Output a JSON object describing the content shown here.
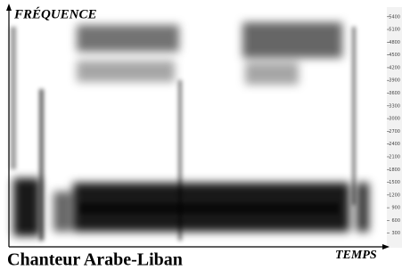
{
  "chart_data": {
    "type": "spectrogram",
    "title": "Chanteur Arabe-Liban",
    "y_label": "FRÉQUENCE",
    "x_label": "TEMPS",
    "ylim": [
      0,
      5500
    ],
    "yticks": [
      300,
      600,
      900,
      1200,
      1500,
      1800,
      2100,
      2400,
      2700,
      3000,
      3300,
      3600,
      3900,
      4200,
      4500,
      4800,
      5100,
      5400
    ]
  }
}
